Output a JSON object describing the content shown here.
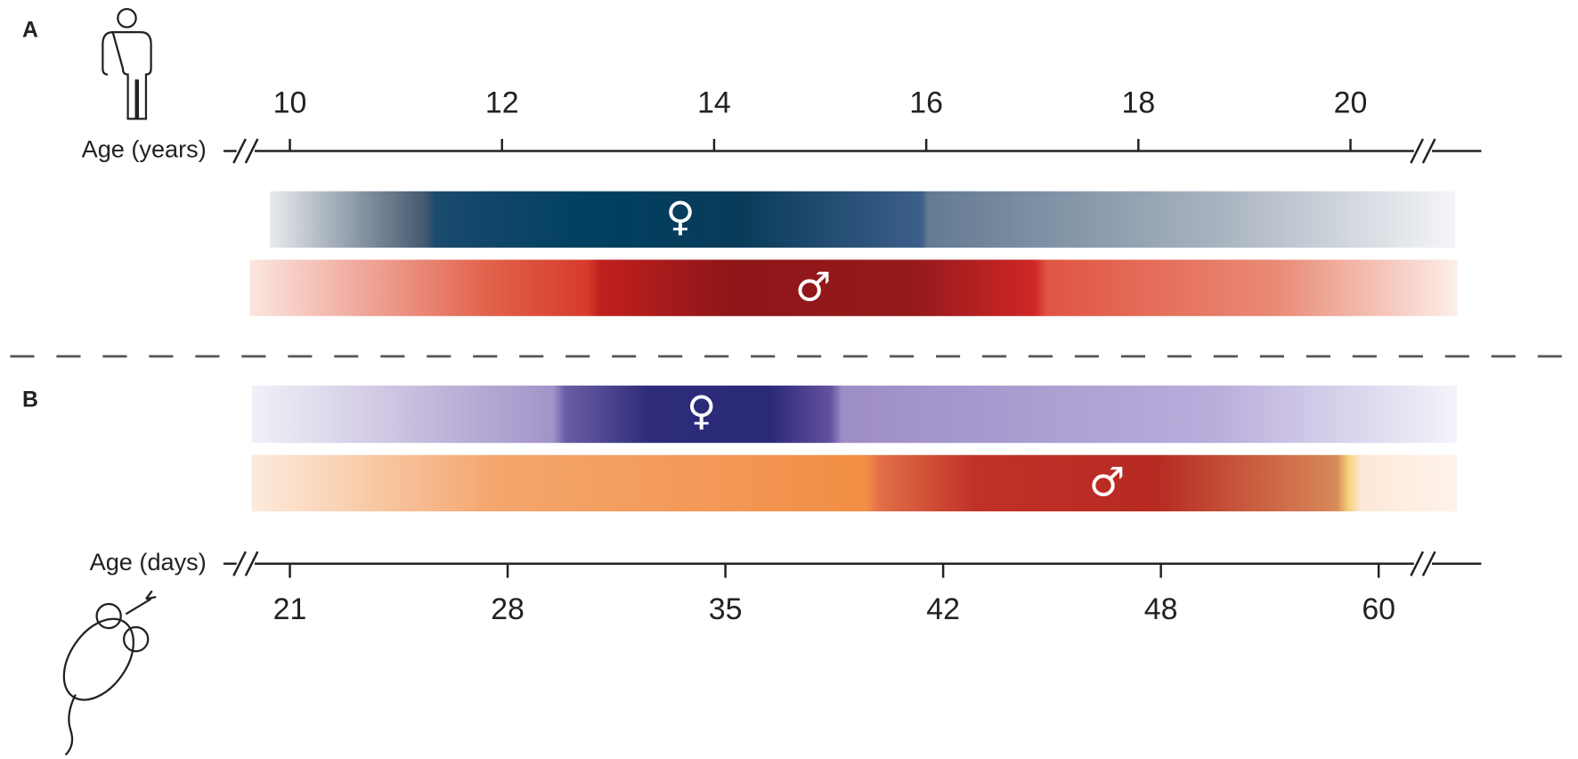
{
  "panel_a": {
    "label": "A",
    "axis_label": "Age (years)",
    "ticks": [
      "10",
      "12",
      "14",
      "16",
      "18",
      "20"
    ],
    "female_symbol": "♀",
    "male_symbol": "♂"
  },
  "panel_b": {
    "label": "B",
    "axis_label": "Age (days)",
    "ticks": [
      "21",
      "28",
      "35",
      "42",
      "48",
      "60"
    ],
    "female_symbol": "♀",
    "male_symbol": "♂"
  }
}
